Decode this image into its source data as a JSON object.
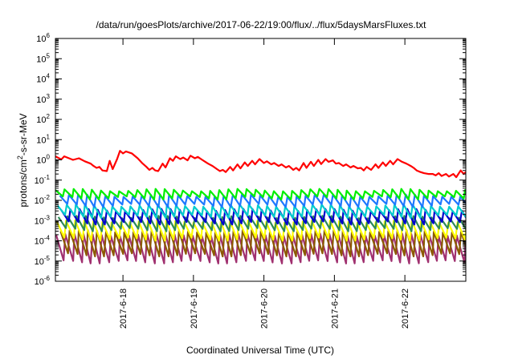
{
  "chart_data": {
    "type": "line",
    "title": "/data/run/goesPlots/archive/2017-06-22/19:00/flux/../flux/5daysMarsFluxes.txt",
    "xlabel": "Coordinated Universal Time (UTC)",
    "ylabel": {
      "base": "protons/cm",
      "sup": "2",
      "rest": "-s-sr-MeV"
    },
    "yscale": "log",
    "ylim": [
      "1e-6",
      "1e6"
    ],
    "xlim": [
      "2017-06-17T01:00",
      "2017-06-22T20:45"
    ],
    "grid": false,
    "legend": "none",
    "y_ticks": [
      {
        "exp": -6,
        "base": "10",
        "sup": "-6"
      },
      {
        "exp": -5,
        "base": "10",
        "sup": "-5"
      },
      {
        "exp": -4,
        "base": "10",
        "sup": "-4"
      },
      {
        "exp": -3,
        "base": "10",
        "sup": "-3"
      },
      {
        "exp": -2,
        "base": "10",
        "sup": "-2"
      },
      {
        "exp": -1,
        "base": "10",
        "sup": "-1"
      },
      {
        "exp": 0,
        "base": "10",
        "sup": "0"
      },
      {
        "exp": 1,
        "base": "10",
        "sup": "1"
      },
      {
        "exp": 2,
        "base": "10",
        "sup": "2"
      },
      {
        "exp": 3,
        "base": "10",
        "sup": "3"
      },
      {
        "exp": 4,
        "base": "10",
        "sup": "4"
      },
      {
        "exp": 5,
        "base": "10",
        "sup": "5"
      },
      {
        "exp": 6,
        "base": "10",
        "sup": "6"
      }
    ],
    "x_ticks": [
      {
        "label": "2017-6-18",
        "date": "2017-06-18T00:00"
      },
      {
        "label": "2017-6-19",
        "date": "2017-06-19T00:00"
      },
      {
        "label": "2017-6-20",
        "date": "2017-06-20T00:00"
      },
      {
        "label": "2017-6-21",
        "date": "2017-06-21T00:00"
      },
      {
        "label": "2017-6-22",
        "date": "2017-06-22T00:00"
      }
    ],
    "series": [
      {
        "color": "#ff0000",
        "points": [
          [
            "2017-06-17T01:00",
            1.5
          ],
          [
            "2017-06-17T03:00",
            1.05
          ],
          [
            "2017-06-17T04:00",
            1.5
          ],
          [
            "2017-06-17T07:00",
            1.0
          ],
          [
            "2017-06-17T09:00",
            1.2
          ],
          [
            "2017-06-17T11:00",
            0.85
          ],
          [
            "2017-06-17T13:00",
            0.65
          ],
          [
            "2017-06-17T14:00",
            0.5
          ],
          [
            "2017-06-17T15:00",
            0.4
          ],
          [
            "2017-06-17T16:00",
            0.45
          ],
          [
            "2017-06-17T17:00",
            0.3
          ],
          [
            "2017-06-17T18:30",
            0.28
          ],
          [
            "2017-06-17T19:30",
            0.9
          ],
          [
            "2017-06-17T20:30",
            0.35
          ],
          [
            "2017-06-17T22:00",
            1.1
          ],
          [
            "2017-06-17T23:00",
            2.8
          ],
          [
            "2017-06-18T00:00",
            2.1
          ],
          [
            "2017-06-18T01:00",
            2.6
          ],
          [
            "2017-06-18T03:00",
            2.1
          ],
          [
            "2017-06-18T05:00",
            1.2
          ],
          [
            "2017-06-18T06:30",
            0.7
          ],
          [
            "2017-06-18T08:00",
            0.45
          ],
          [
            "2017-06-18T09:00",
            0.32
          ],
          [
            "2017-06-18T10:00",
            0.4
          ],
          [
            "2017-06-18T11:00",
            0.3
          ],
          [
            "2017-06-18T12:00",
            0.28
          ],
          [
            "2017-06-18T13:30",
            0.65
          ],
          [
            "2017-06-18T14:30",
            0.42
          ],
          [
            "2017-06-18T16:00",
            1.2
          ],
          [
            "2017-06-18T17:00",
            0.9
          ],
          [
            "2017-06-18T18:00",
            1.5
          ],
          [
            "2017-06-18T19:30",
            1.1
          ],
          [
            "2017-06-18T20:30",
            1.3
          ],
          [
            "2017-06-18T22:00",
            0.95
          ],
          [
            "2017-06-18T23:00",
            1.6
          ],
          [
            "2017-06-19T00:30",
            1.2
          ],
          [
            "2017-06-19T01:30",
            1.4
          ],
          [
            "2017-06-19T03:00",
            1.0
          ],
          [
            "2017-06-19T05:00",
            0.65
          ],
          [
            "2017-06-19T06:30",
            0.5
          ],
          [
            "2017-06-19T08:00",
            0.35
          ],
          [
            "2017-06-19T09:00",
            0.28
          ],
          [
            "2017-06-19T10:00",
            0.32
          ],
          [
            "2017-06-19T11:00",
            0.25
          ],
          [
            "2017-06-19T12:30",
            0.45
          ],
          [
            "2017-06-19T13:30",
            0.3
          ],
          [
            "2017-06-19T15:00",
            0.6
          ],
          [
            "2017-06-19T16:00",
            0.38
          ],
          [
            "2017-06-19T17:30",
            0.75
          ],
          [
            "2017-06-19T18:30",
            0.5
          ],
          [
            "2017-06-19T20:00",
            0.9
          ],
          [
            "2017-06-19T21:00",
            0.6
          ],
          [
            "2017-06-19T22:30",
            1.1
          ],
          [
            "2017-06-20T00:00",
            0.7
          ],
          [
            "2017-06-20T01:00",
            0.85
          ],
          [
            "2017-06-20T02:30",
            0.6
          ],
          [
            "2017-06-20T03:30",
            0.7
          ],
          [
            "2017-06-20T05:00",
            0.5
          ],
          [
            "2017-06-20T06:00",
            0.6
          ],
          [
            "2017-06-20T07:30",
            0.42
          ],
          [
            "2017-06-20T08:30",
            0.5
          ],
          [
            "2017-06-20T10:00",
            0.32
          ],
          [
            "2017-06-20T11:00",
            0.4
          ],
          [
            "2017-06-20T12:00",
            0.3
          ],
          [
            "2017-06-20T13:30",
            0.7
          ],
          [
            "2017-06-20T14:30",
            0.4
          ],
          [
            "2017-06-20T16:00",
            0.8
          ],
          [
            "2017-06-20T17:00",
            0.5
          ],
          [
            "2017-06-20T18:30",
            1.0
          ],
          [
            "2017-06-20T19:30",
            0.62
          ],
          [
            "2017-06-20T21:00",
            1.1
          ],
          [
            "2017-06-20T22:00",
            0.8
          ],
          [
            "2017-06-20T23:30",
            0.95
          ],
          [
            "2017-06-21T00:30",
            0.65
          ],
          [
            "2017-06-21T01:30",
            0.7
          ],
          [
            "2017-06-21T03:00",
            0.5
          ],
          [
            "2017-06-21T04:00",
            0.6
          ],
          [
            "2017-06-21T05:30",
            0.42
          ],
          [
            "2017-06-21T06:30",
            0.5
          ],
          [
            "2017-06-21T08:00",
            0.38
          ],
          [
            "2017-06-21T09:00",
            0.4
          ],
          [
            "2017-06-21T10:00",
            0.3
          ],
          [
            "2017-06-21T11:00",
            0.45
          ],
          [
            "2017-06-21T12:30",
            0.32
          ],
          [
            "2017-06-21T14:00",
            0.6
          ],
          [
            "2017-06-21T15:00",
            0.4
          ],
          [
            "2017-06-21T16:30",
            0.75
          ],
          [
            "2017-06-21T17:30",
            0.5
          ],
          [
            "2017-06-21T19:00",
            0.9
          ],
          [
            "2017-06-21T20:00",
            0.6
          ],
          [
            "2017-06-21T21:30",
            1.1
          ],
          [
            "2017-06-21T23:00",
            0.8
          ],
          [
            "2017-06-22T00:30",
            0.65
          ],
          [
            "2017-06-22T02:00",
            0.5
          ],
          [
            "2017-06-22T03:00",
            0.4
          ],
          [
            "2017-06-22T04:00",
            0.3
          ],
          [
            "2017-06-22T05:00",
            0.26
          ],
          [
            "2017-06-22T06:30",
            0.22
          ],
          [
            "2017-06-22T08:00",
            0.2
          ],
          [
            "2017-06-22T09:30",
            0.2
          ],
          [
            "2017-06-22T10:30",
            0.17
          ],
          [
            "2017-06-22T11:30",
            0.22
          ],
          [
            "2017-06-22T12:30",
            0.16
          ],
          [
            "2017-06-22T14:00",
            0.2
          ],
          [
            "2017-06-22T15:00",
            0.15
          ],
          [
            "2017-06-22T16:30",
            0.2
          ],
          [
            "2017-06-22T17:30",
            0.14
          ],
          [
            "2017-06-22T19:00",
            0.3
          ],
          [
            "2017-06-22T20:00",
            0.2
          ],
          [
            "2017-06-22T20:45",
            0.25
          ]
        ]
      },
      {
        "color": "#00ee00",
        "sawtooth": {
          "peak": 0.032,
          "trough": 0.013,
          "start": "2017-06-17T01:00",
          "period_hours": 3.1
        }
      },
      {
        "color": "#1e78ff",
        "sawtooth": {
          "peak": 0.017,
          "trough": 0.0055,
          "start": "2017-06-17T02:30",
          "period_hours": 3.1
        }
      },
      {
        "color": "#00cccc",
        "sawtooth": {
          "peak": 0.0055,
          "trough": 0.0016,
          "start": "2017-06-17T01:45",
          "period_hours": 3.1
        }
      },
      {
        "color": "#0000cd",
        "sawtooth": {
          "peak": 0.0033,
          "trough": 0.00075,
          "start": "2017-06-17T03:00",
          "period_hours": 3.1
        }
      },
      {
        "color": "#2e8b57",
        "sawtooth": {
          "peak": 0.0015,
          "trough": 0.00035,
          "start": "2017-06-17T02:00",
          "period_hours": 3.1
        }
      },
      {
        "color": "#ffff00",
        "sawtooth": {
          "peak": 0.0009,
          "trough": 0.00012,
          "start": "2017-06-17T01:30",
          "period_hours": 3.1
        }
      },
      {
        "color": "#8b5a00",
        "sawtooth": {
          "peak": 0.0003,
          "trough": 2e-05,
          "start": "2017-06-17T02:45",
          "period_hours": 3.1
        }
      },
      {
        "color": "#a0306f",
        "sawtooth": {
          "peak": 0.0002,
          "trough": 9e-06,
          "start": "2017-06-17T01:15",
          "period_hours": 3.1
        }
      }
    ]
  }
}
